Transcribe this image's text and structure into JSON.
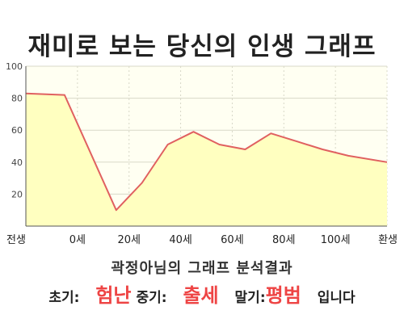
{
  "chart_data": {
    "type": "area",
    "title": "재미로 보는 당신의 인생 그래프",
    "xlabel": "",
    "ylabel": "",
    "ylim": [
      0,
      100
    ],
    "yticks": [
      20,
      40,
      60,
      80,
      100
    ],
    "grid": true,
    "colors": {
      "line": "#e06060",
      "fill": "#ffffc0",
      "plot_bg": "#fffff2",
      "grid": "#d8d8c8"
    },
    "x_labels": [
      {
        "x": 0,
        "label": "전생"
      },
      {
        "x": 1,
        "label": "0세"
      },
      {
        "x": 2,
        "label": "20세"
      },
      {
        "x": 3,
        "label": "40세"
      },
      {
        "x": 4,
        "label": "60세"
      },
      {
        "x": 5,
        "label": "80세"
      },
      {
        "x": 6,
        "label": "100세"
      },
      {
        "x": 7,
        "label": "환생"
      }
    ],
    "points": [
      {
        "x": 0,
        "y": 83
      },
      {
        "x": 0.75,
        "y": 82
      },
      {
        "x": 1.75,
        "y": 10
      },
      {
        "x": 2.25,
        "y": 27
      },
      {
        "x": 2.75,
        "y": 51
      },
      {
        "x": 3.25,
        "y": 59
      },
      {
        "x": 3.75,
        "y": 51
      },
      {
        "x": 4.25,
        "y": 48
      },
      {
        "x": 4.75,
        "y": 58
      },
      {
        "x": 5.25,
        "y": 53
      },
      {
        "x": 5.75,
        "y": 48
      },
      {
        "x": 6.25,
        "y": 44
      },
      {
        "x": 7,
        "y": 40
      }
    ]
  },
  "summary": {
    "title": "곽정아님의 그래프 분석결과",
    "early_label": "초기:",
    "early_value": "험난",
    "middle_label": "중기:",
    "middle_value": "출세",
    "late_label": "말기:",
    "late_value": "평범",
    "suffix": "입니다"
  }
}
